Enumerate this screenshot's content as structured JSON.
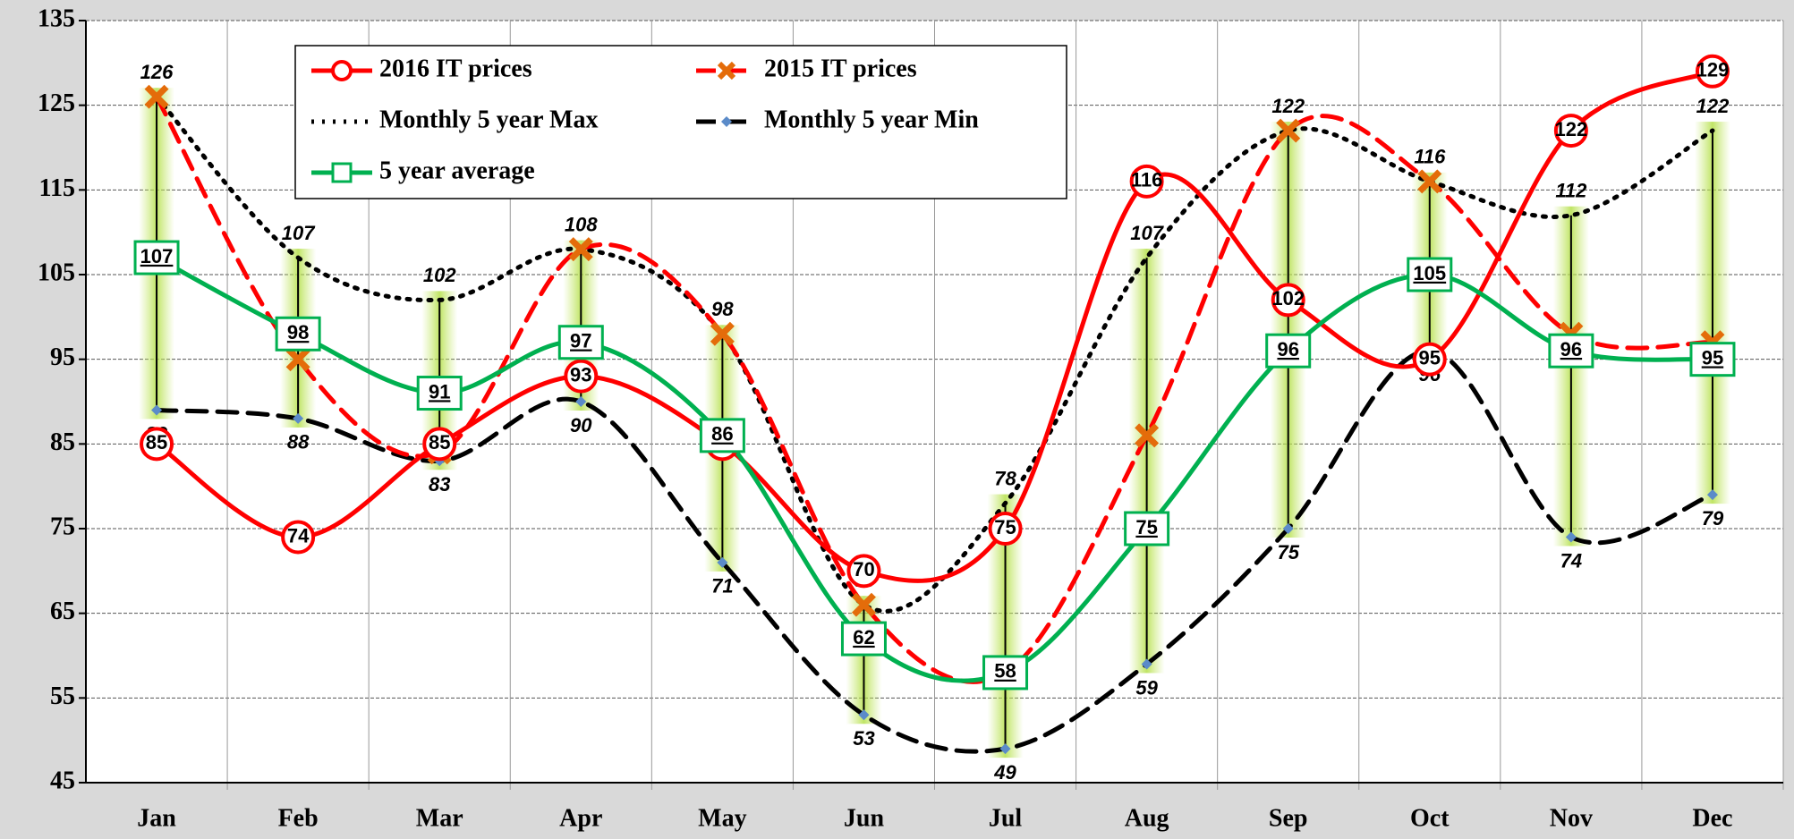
{
  "chart_data": {
    "type": "line",
    "categories": [
      "Jan",
      "Feb",
      "Mar",
      "Apr",
      "May",
      "Jun",
      "Jul",
      "Aug",
      "Sep",
      "Oct",
      "Nov",
      "Dec"
    ],
    "ylim": [
      45,
      135
    ],
    "yticks": [
      45,
      55,
      65,
      75,
      85,
      95,
      105,
      115,
      125,
      135
    ],
    "grid": true,
    "legend": "top-left",
    "series": [
      {
        "name": "2016 IT prices",
        "color": "#ff0000",
        "line_style": "solid",
        "marker": "circle",
        "values": [
          85,
          74,
          85,
          93,
          85,
          70,
          75,
          116,
          102,
          95,
          122,
          129
        ]
      },
      {
        "name": "2015 IT prices",
        "color": "#ff0000",
        "marker_color": "#e46c0a",
        "line_style": "dashed",
        "marker": "x",
        "values": [
          126,
          95,
          84,
          108,
          98,
          66,
          58,
          86,
          122,
          116,
          98,
          97
        ]
      },
      {
        "name": "Monthly 5 year Max",
        "color": "#000000",
        "line_style": "dotted",
        "marker": "none",
        "values": [
          126,
          107,
          102,
          108,
          98,
          66,
          78,
          107,
          122,
          116,
          112,
          122
        ]
      },
      {
        "name": "Monthly 5 year Min",
        "color": "#000000",
        "marker_color": "#5b8bc9",
        "line_style": "dashed",
        "marker": "diamond",
        "values": [
          89,
          88,
          83,
          90,
          71,
          53,
          49,
          59,
          75,
          96,
          74,
          79
        ]
      },
      {
        "name": "5 year average",
        "color": "#00b050",
        "line_style": "solid",
        "marker": "square",
        "values": [
          107,
          98,
          91,
          97,
          86,
          62,
          58,
          75,
          96,
          105,
          96,
          95
        ]
      }
    ]
  }
}
